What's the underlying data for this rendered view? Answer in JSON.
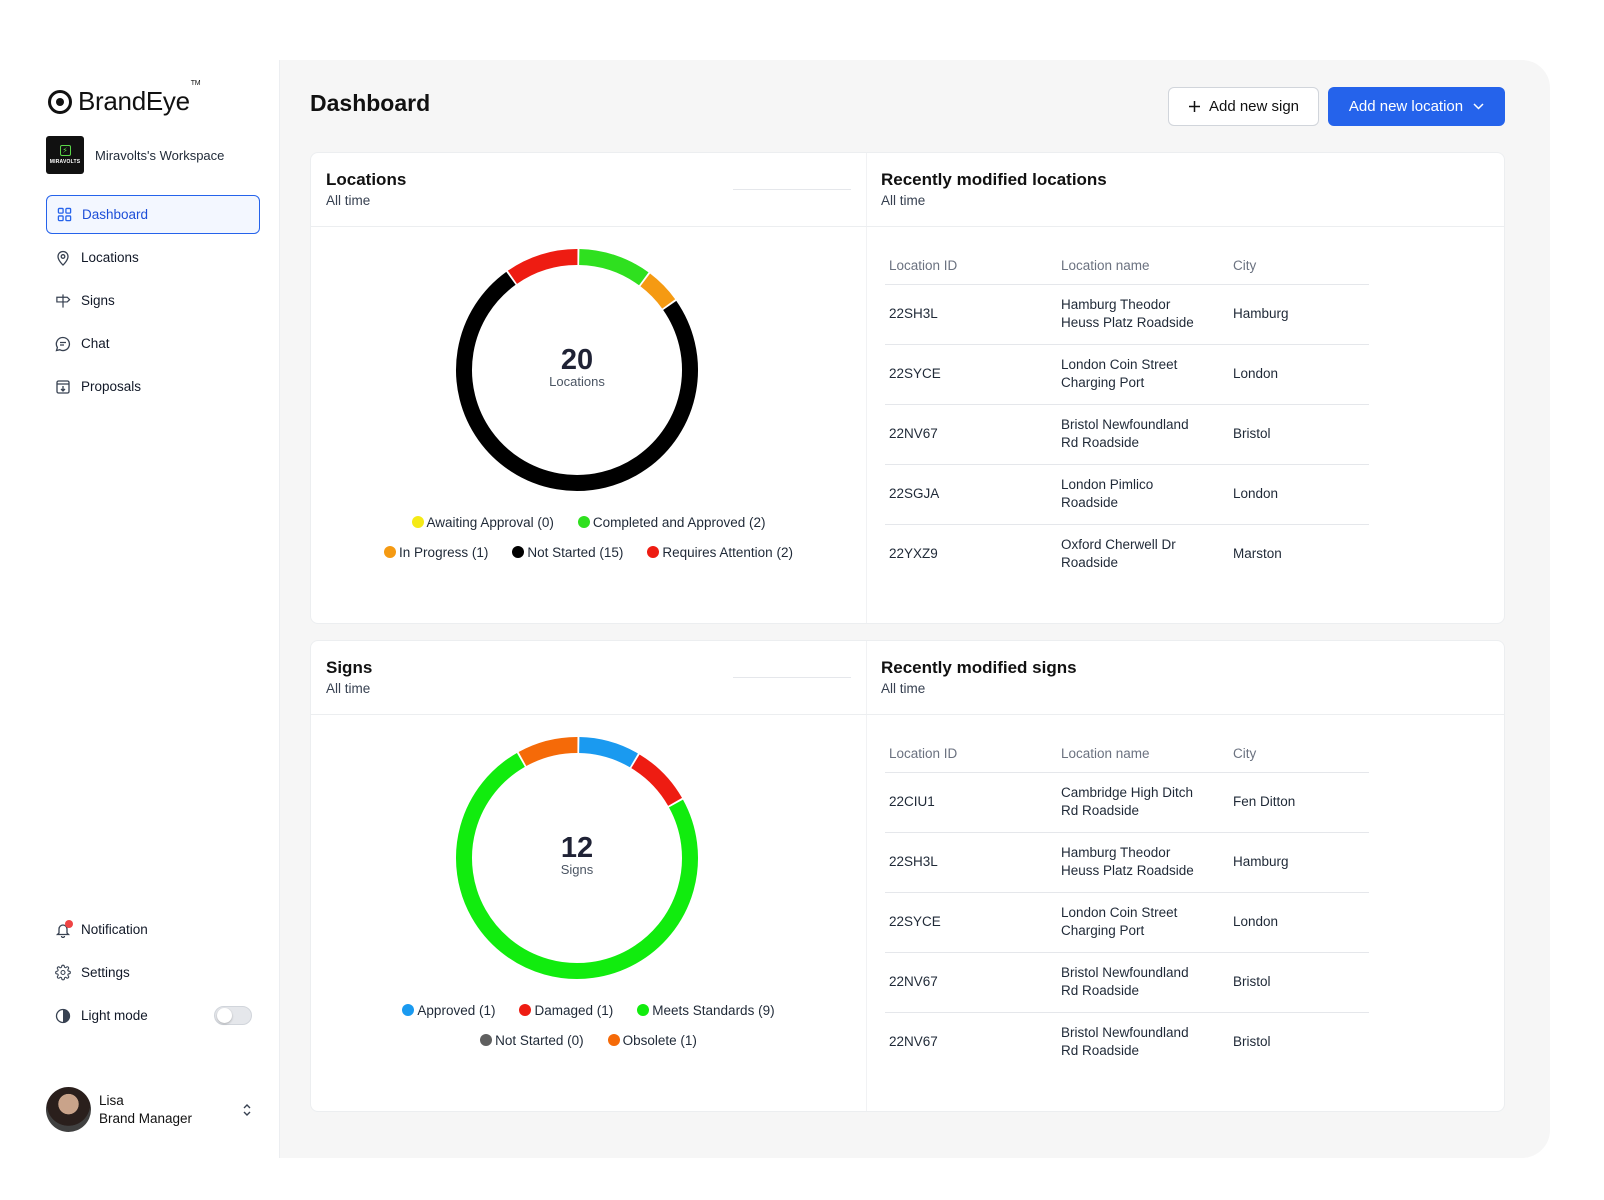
{
  "brand": {
    "name": "BrandEye",
    "tm": "TM"
  },
  "workspace": {
    "logo_text": "MIRAVOLTS",
    "name": "Miravolts's Workspace"
  },
  "nav": {
    "items": [
      {
        "label": "Dashboard",
        "icon": "grid-icon"
      },
      {
        "label": "Locations",
        "icon": "map-pin-icon"
      },
      {
        "label": "Signs",
        "icon": "signpost-icon"
      },
      {
        "label": "Chat",
        "icon": "chat-icon"
      },
      {
        "label": "Proposals",
        "icon": "proposal-icon"
      }
    ],
    "notification": "Notification",
    "settings": "Settings",
    "light_mode": "Light mode"
  },
  "user": {
    "name": "Lisa",
    "role": "Brand Manager"
  },
  "header": {
    "title": "Dashboard",
    "add_sign": "Add new sign",
    "add_location": "Add new location"
  },
  "locations": {
    "title": "Locations",
    "subtitle": "All time",
    "total": "20",
    "total_label": "Locations",
    "legend": [
      {
        "label": "Awaiting Approval (0)",
        "color": "#f5ea16"
      },
      {
        "label": "Completed and Approved (2)",
        "color": "#2fe01f"
      },
      {
        "label": "In Progress (1)",
        "color": "#f59a12"
      },
      {
        "label": "Not Started (15)",
        "color": "#000000"
      },
      {
        "label": "Requires Attention (2)",
        "color": "#ee1c12"
      }
    ]
  },
  "recent_locations": {
    "title": "Recently modified locations",
    "subtitle": "All time",
    "headers": [
      "Location ID",
      "Location name",
      "City"
    ],
    "rows": [
      {
        "id": "22SH3L",
        "name_l1": "Hamburg Theodor",
        "name_l2": "Heuss Platz Roadside",
        "city": "Hamburg"
      },
      {
        "id": "22SYCE",
        "name_l1": "London Coin Street",
        "name_l2": "Charging Port",
        "city": "London"
      },
      {
        "id": "22NV67",
        "name_l1": "Bristol Newfoundland",
        "name_l2": "Rd Roadside",
        "city": "Bristol"
      },
      {
        "id": "22SGJA",
        "name_l1": "London Pimlico",
        "name_l2": "Roadside",
        "city": "London"
      },
      {
        "id": "22YXZ9",
        "name_l1": "Oxford Cherwell Dr",
        "name_l2": "Roadside",
        "city": "Marston"
      }
    ]
  },
  "signs": {
    "title": "Signs",
    "subtitle": "All time",
    "total": "12",
    "total_label": "Signs",
    "legend": [
      {
        "label": "Approved (1)",
        "color": "#1a9af0"
      },
      {
        "label": "Damaged (1)",
        "color": "#ee1c12"
      },
      {
        "label": "Meets Standards (9)",
        "color": "#11ec0e"
      },
      {
        "label": "Not Started (0)",
        "color": "#5f5f5f"
      },
      {
        "label": "Obsolete (1)",
        "color": "#f56a08"
      }
    ]
  },
  "recent_signs": {
    "title": "Recently modified signs",
    "subtitle": "All time",
    "headers": [
      "Location ID",
      "Location name",
      "City"
    ],
    "rows": [
      {
        "id": "22CIU1",
        "name_l1": "Cambridge High Ditch",
        "name_l2": "Rd Roadside",
        "city": "Fen Ditton"
      },
      {
        "id": "22SH3L",
        "name_l1": "Hamburg Theodor",
        "name_l2": "Heuss Platz Roadside",
        "city": "Hamburg"
      },
      {
        "id": "22SYCE",
        "name_l1": "London Coin Street",
        "name_l2": "Charging Port",
        "city": "London"
      },
      {
        "id": "22NV67",
        "name_l1": "Bristol Newfoundland",
        "name_l2": "Rd Roadside",
        "city": "Bristol"
      },
      {
        "id": "22NV67",
        "name_l1": "Bristol Newfoundland",
        "name_l2": "Rd Roadside",
        "city": "Bristol"
      }
    ]
  },
  "chart_data": [
    {
      "type": "pie",
      "title": "Locations",
      "categories": [
        "Awaiting Approval",
        "Completed and Approved",
        "In Progress",
        "Not Started",
        "Requires Attention"
      ],
      "values": [
        0,
        2,
        1,
        15,
        2
      ],
      "colors": [
        "#f5ea16",
        "#2fe01f",
        "#f59a12",
        "#000000",
        "#ee1c12"
      ]
    },
    {
      "type": "pie",
      "title": "Signs",
      "categories": [
        "Approved",
        "Damaged",
        "Meets Standards",
        "Not Started",
        "Obsolete"
      ],
      "values": [
        1,
        1,
        9,
        0,
        1
      ],
      "colors": [
        "#1a9af0",
        "#ee1c12",
        "#11ec0e",
        "#5f5f5f",
        "#f56a08"
      ]
    }
  ]
}
